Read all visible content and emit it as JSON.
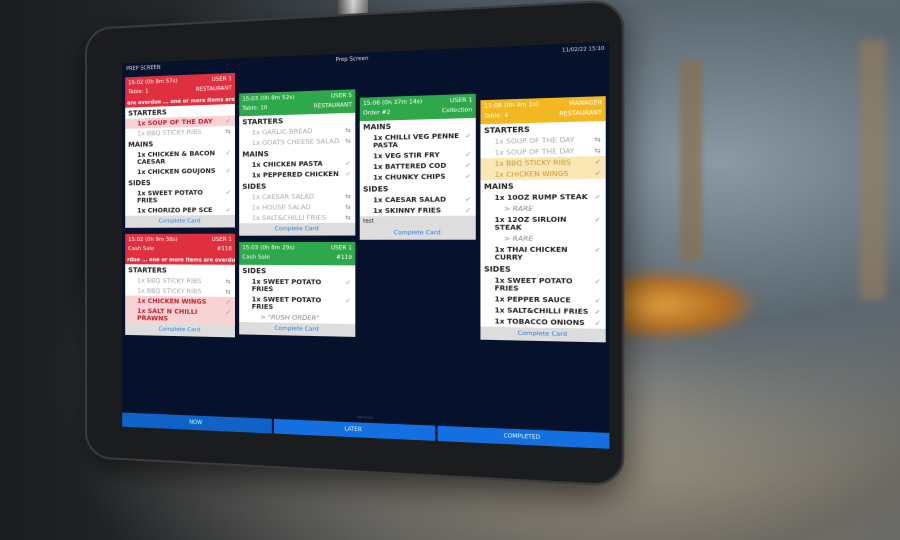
{
  "screen": {
    "title": "PREP SCREEN",
    "center_title": "Prep Screen",
    "datetime": "11/02/22 15:10"
  },
  "colors": {
    "red": "#e03040",
    "green": "#2ea84a",
    "yellow": "#f3b821",
    "accent": "#1470e0",
    "background": "#06122b"
  },
  "columns": [
    [
      {
        "color": "red",
        "time": "15:02 (0h 9m 57s)",
        "left2": "Table: 1",
        "user": "USER 1",
        "type": "RESTAURANT",
        "overdue": "are overdue ... one or more items are overdue ...",
        "sections": [
          {
            "name": "STARTERS",
            "items": [
              {
                "text": "1x SOUP OF THE DAY",
                "state": "hl-red",
                "mark": "✓"
              },
              {
                "text": "1x BBQ STICKY RIBS",
                "state": "pending",
                "mark": "⇆"
              }
            ]
          },
          {
            "name": "MAINS",
            "items": [
              {
                "text": "1x CHICKEN & BACON CAESAR",
                "state": "done",
                "mark": "✓"
              },
              {
                "text": "1x CHICKEN GOUJONS",
                "state": "done",
                "mark": "✓"
              }
            ]
          },
          {
            "name": "SIDES",
            "items": [
              {
                "text": "1x SWEET POTATO FRIES",
                "state": "done",
                "mark": "✓"
              },
              {
                "text": "1x CHORIZO PEP SCE",
                "state": "done",
                "mark": "✓"
              }
            ]
          }
        ],
        "footer": "Complete Card"
      },
      {
        "color": "red",
        "time": "15:02 (0h 9m 38s)",
        "left2": "Cash Sale",
        "user": "USER 1",
        "type": "#118",
        "overdue": "rdue ... one or more items are overdue ...",
        "sections": [
          {
            "name": "STARTERS",
            "items": [
              {
                "text": "1x BBQ STICKY RIBS",
                "state": "pending",
                "mark": "⇆"
              },
              {
                "text": "1x BBQ STICKY RIBS",
                "state": "pending",
                "mark": "⇆"
              },
              {
                "text": "1x CHICKEN WINGS",
                "state": "hl-red",
                "mark": "✓"
              },
              {
                "text": "1x SALT N CHILLI PRAWNS",
                "state": "hl-red",
                "mark": "✓"
              }
            ]
          }
        ],
        "footer": "Complete Card"
      }
    ],
    [
      {
        "color": "green",
        "time": "15:03 (0h 8m 52s)",
        "left2": "Table: 10",
        "user": "USER 5",
        "type": "RESTAURANT",
        "sections": [
          {
            "name": "STARTERS",
            "items": [
              {
                "text": "1x GARLIC BREAD",
                "state": "pending",
                "mark": "⇆"
              },
              {
                "text": "1x GOATS CHEESE SALAD",
                "state": "pending",
                "mark": "⇆"
              }
            ]
          },
          {
            "name": "MAINS",
            "items": [
              {
                "text": "1x CHICKEN PASTA",
                "state": "done",
                "mark": "✓"
              },
              {
                "text": "1x PEPPERED CHICKEN",
                "state": "done",
                "mark": "✓"
              }
            ]
          },
          {
            "name": "SIDES",
            "items": [
              {
                "text": "1x CAESAR SALAD",
                "state": "pending",
                "mark": "⇆"
              },
              {
                "text": "1x HOUSE SALAD",
                "state": "pending",
                "mark": "⇆"
              },
              {
                "text": "1x SALT&CHILLI FRIES",
                "state": "pending",
                "mark": "⇆"
              }
            ]
          }
        ],
        "footer": "Complete Card"
      },
      {
        "color": "green",
        "time": "15:03 (0h 8m 29s)",
        "left2": "Cash Sale",
        "user": "USER 1",
        "type": "#119",
        "sections": [
          {
            "name": "SIDES",
            "items": [
              {
                "text": "1x SWEET POTATO FRIES",
                "state": "done",
                "mark": "✓"
              },
              {
                "text": "1x SWEET POTATO FRIES",
                "state": "done",
                "mark": "✓"
              },
              {
                "text": "> \"RUSH ORDER\"",
                "state": "mod",
                "mark": ""
              }
            ]
          }
        ],
        "footer": "Complete Card"
      }
    ],
    [
      {
        "color": "green",
        "time": "15:06 (0h 37m 14s)",
        "left2": "Order #2",
        "user": "USER 1",
        "type": "Collection",
        "sections": [
          {
            "name": "MAINS",
            "items": [
              {
                "text": "1x CHILLI VEG PENNE PASTA",
                "state": "done",
                "mark": "✓"
              },
              {
                "text": "1x VEG STIR FRY",
                "state": "done",
                "mark": "✓"
              },
              {
                "text": "1x BATTERED COD",
                "state": "done",
                "mark": "✓"
              },
              {
                "text": "1x CHUNKY CHIPS",
                "state": "done",
                "mark": "✓"
              }
            ]
          },
          {
            "name": "SIDES",
            "items": [
              {
                "text": "1x CAESAR SALAD",
                "state": "done",
                "mark": "✓"
              },
              {
                "text": "1x SKINNY FRIES",
                "state": "done",
                "mark": "✓"
              }
            ]
          }
        ],
        "note": "test",
        "footer": "Complete Card"
      }
    ],
    [
      {
        "color": "yellow",
        "time": "15:08 (0h 4m 1s)",
        "left2": "Table: 4",
        "user": "MANAGER",
        "type": "RESTAURANT",
        "sections": [
          {
            "name": "STARTERS",
            "items": [
              {
                "text": "1x SOUP OF THE DAY",
                "state": "pending",
                "mark": "⇆"
              },
              {
                "text": "1x SOUP OF THE DAY",
                "state": "pending",
                "mark": "⇆"
              },
              {
                "text": "1x BBQ STICKY RIBS",
                "state": "hl-yellow",
                "mark": "✓"
              },
              {
                "text": "1x CHICKEN WINGS",
                "state": "hl-yellow",
                "mark": "✓"
              }
            ]
          },
          {
            "name": "MAINS",
            "items": [
              {
                "text": "1x 10OZ RUMP STEAK",
                "state": "done",
                "mark": "✓"
              },
              {
                "text": "> RARE",
                "state": "mod",
                "mark": ""
              },
              {
                "text": "1x 12OZ SIRLOIN STEAK",
                "state": "done",
                "mark": "✓"
              },
              {
                "text": "> RARE",
                "state": "mod",
                "mark": ""
              },
              {
                "text": "1x THAI CHICKEN CURRY",
                "state": "done",
                "mark": "✓"
              }
            ]
          },
          {
            "name": "SIDES",
            "items": [
              {
                "text": "1x SWEET POTATO FRIES",
                "state": "done",
                "mark": "✓"
              },
              {
                "text": "1x PEPPER SAUCE",
                "state": "done",
                "mark": "✓"
              },
              {
                "text": "1x SALT&CHILLI FRIES",
                "state": "done",
                "mark": "✓"
              },
              {
                "text": "1x TOBACCO ONIONS",
                "state": "done",
                "mark": "✓"
              }
            ]
          }
        ],
        "footer": "Complete Card"
      }
    ]
  ],
  "tabs": [
    {
      "label": "NOW",
      "active": true
    },
    {
      "label": "LATER",
      "active": false
    },
    {
      "label": "COMPLETED",
      "active": false
    }
  ],
  "tab_hint": "ON HOLD"
}
